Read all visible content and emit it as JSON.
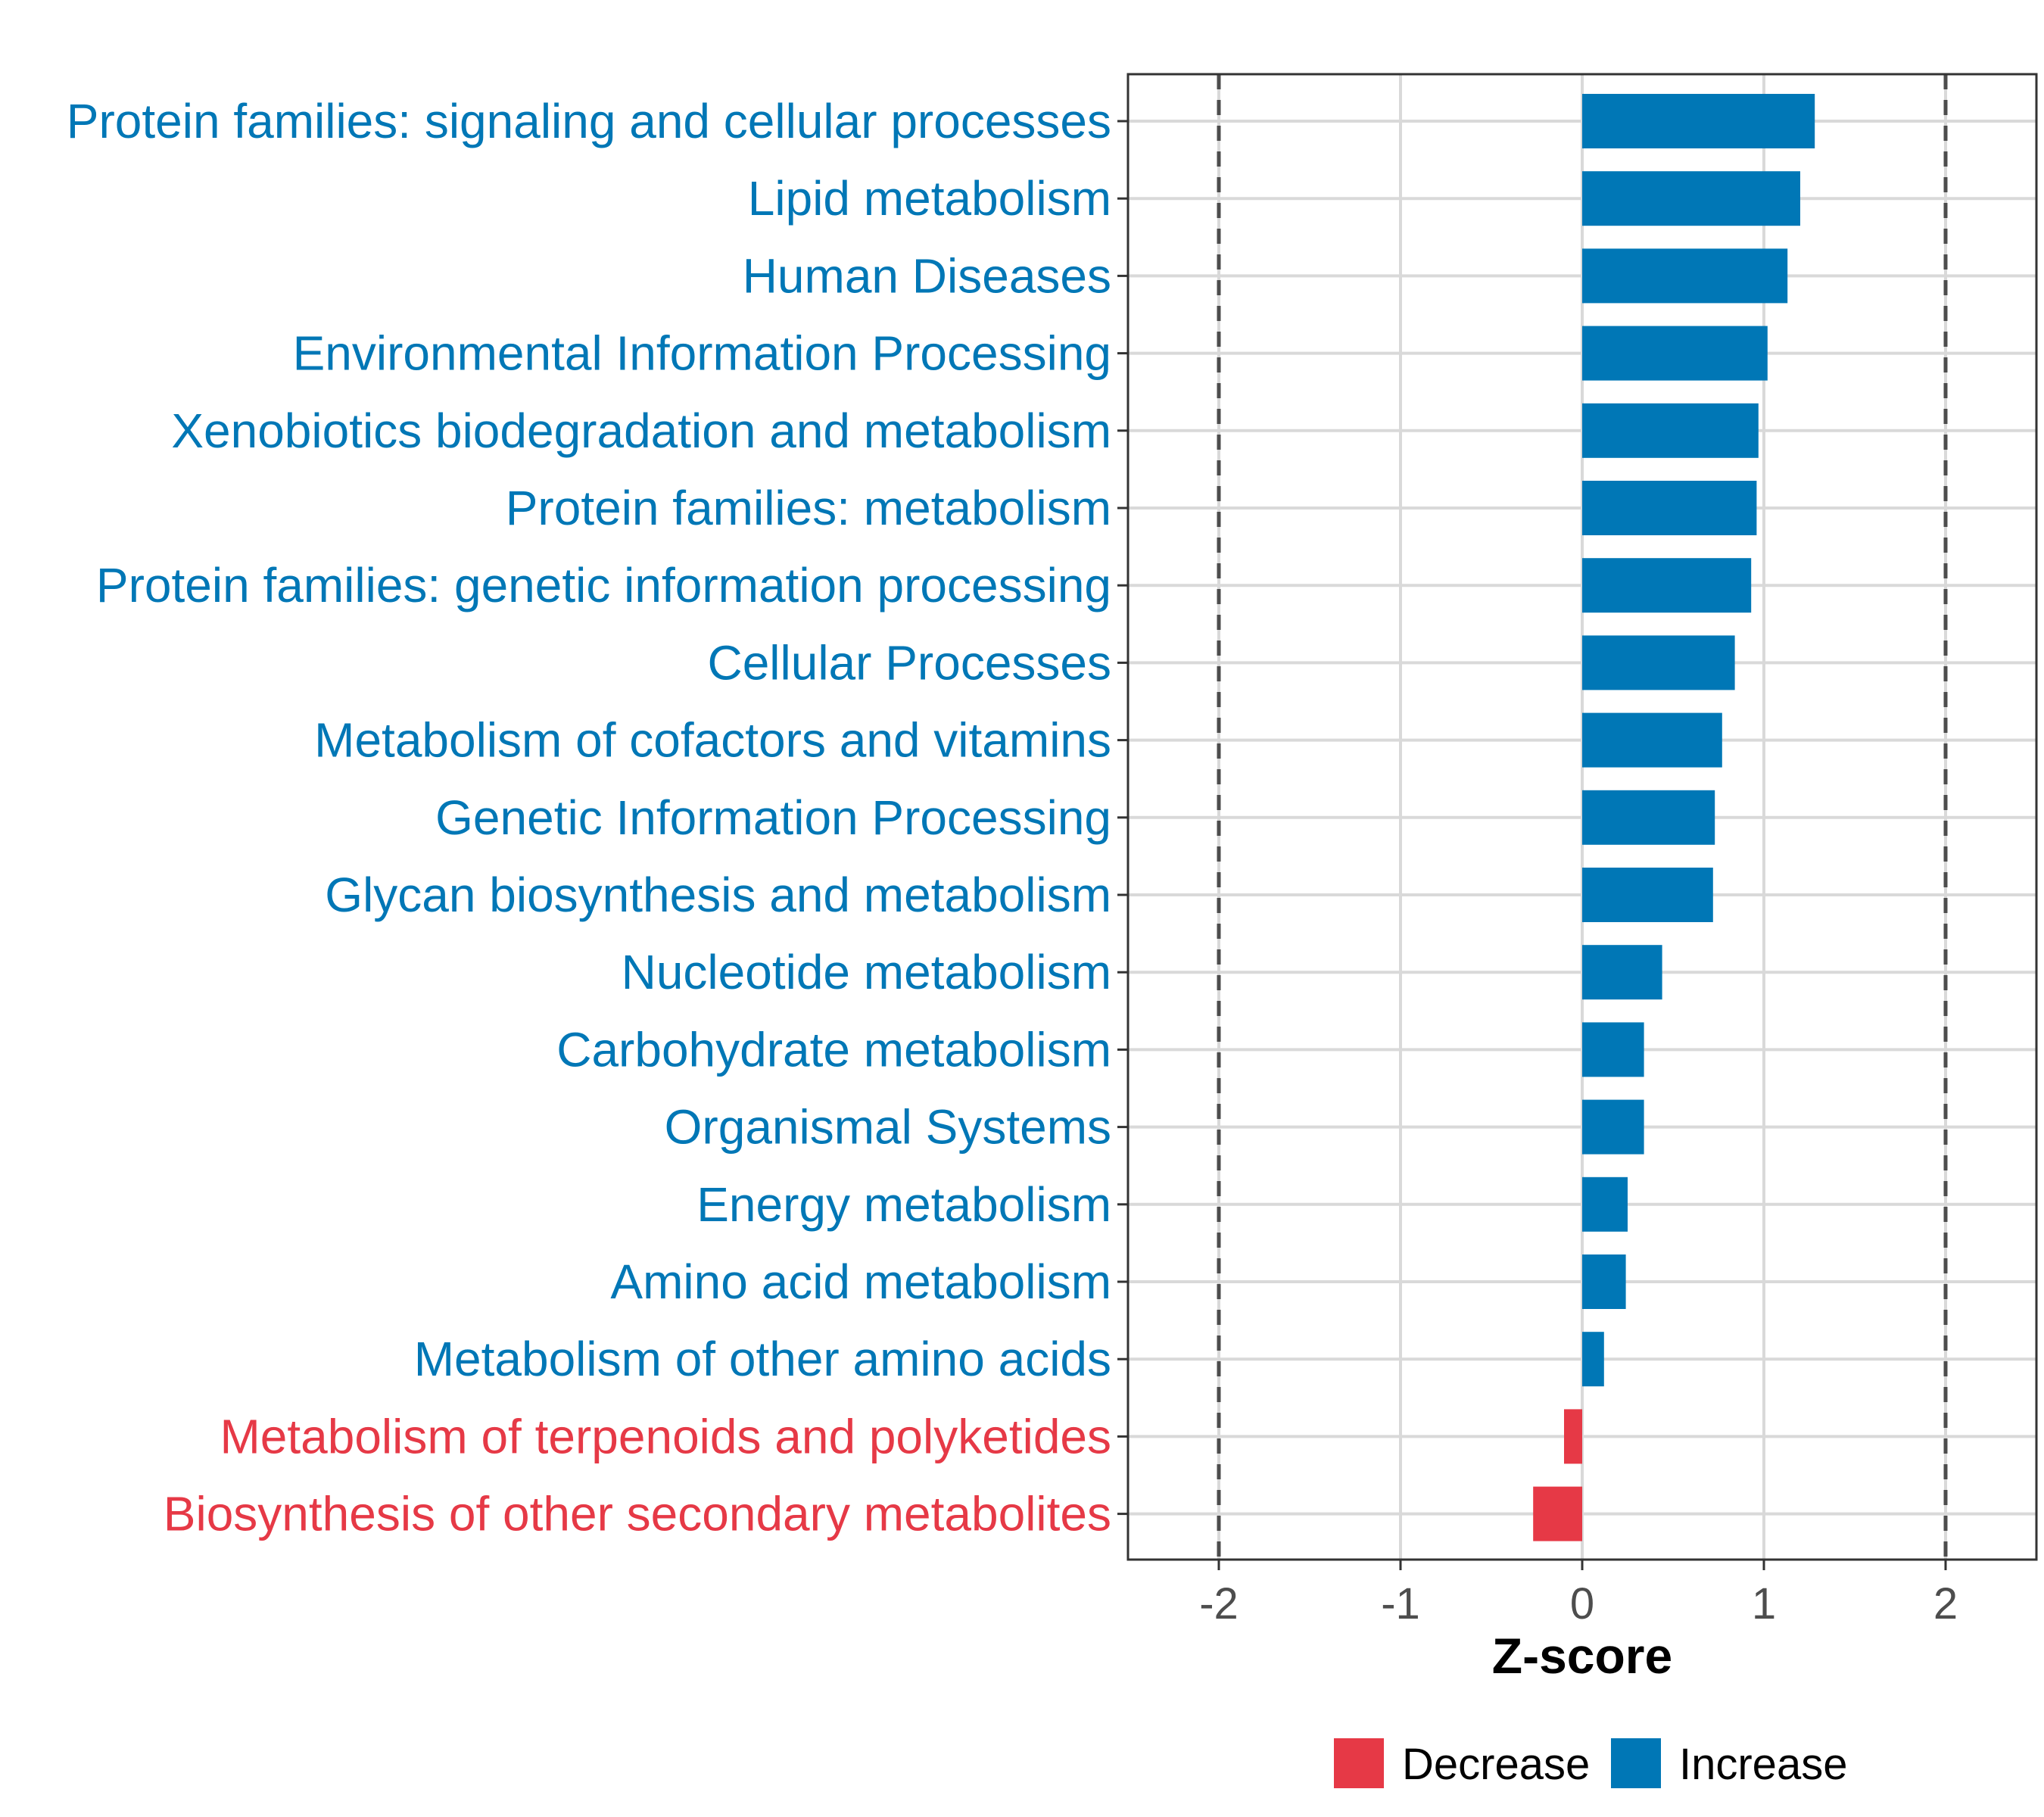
{
  "chart_data": {
    "type": "bar",
    "orientation": "horizontal",
    "xlabel": "Z-score",
    "ylabel": "",
    "xlim": [
      -2.5,
      2.5
    ],
    "xticks": [
      -2,
      -1,
      0,
      1,
      2
    ],
    "xtick_labels": [
      "-2",
      "-1",
      "0",
      "1",
      "2"
    ],
    "reference_lines": [
      -2,
      2
    ],
    "grid": true,
    "legend_position": "bottom",
    "colors": {
      "Decrease": "#e63946",
      "Increase": "#0077b6"
    },
    "legend": [
      {
        "label": "Decrease",
        "color": "#e63946"
      },
      {
        "label": "Increase",
        "color": "#0077b6"
      }
    ],
    "categories": [
      "Protein families: signaling and cellular processes",
      "Lipid metabolism",
      "Human Diseases",
      "Environmental Information Processing",
      "Xenobiotics biodegradation and metabolism",
      "Protein families: metabolism",
      "Protein families: genetic information processing",
      "Cellular Processes",
      "Metabolism of cofactors and vitamins",
      "Genetic Information Processing",
      "Glycan biosynthesis and metabolism",
      "Nucleotide metabolism",
      "Carbohydrate metabolism",
      "Organismal Systems",
      "Energy metabolism",
      "Amino acid metabolism",
      "Metabolism of other amino acids",
      "Metabolism of terpenoids and polyketides",
      "Biosynthesis of other secondary metabolites"
    ],
    "values": [
      1.28,
      1.2,
      1.13,
      1.02,
      0.97,
      0.96,
      0.93,
      0.84,
      0.77,
      0.73,
      0.72,
      0.44,
      0.34,
      0.34,
      0.25,
      0.24,
      0.12,
      -0.1,
      -0.27
    ],
    "groups": [
      "Increase",
      "Increase",
      "Increase",
      "Increase",
      "Increase",
      "Increase",
      "Increase",
      "Increase",
      "Increase",
      "Increase",
      "Increase",
      "Increase",
      "Increase",
      "Increase",
      "Increase",
      "Increase",
      "Increase",
      "Decrease",
      "Decrease"
    ]
  }
}
